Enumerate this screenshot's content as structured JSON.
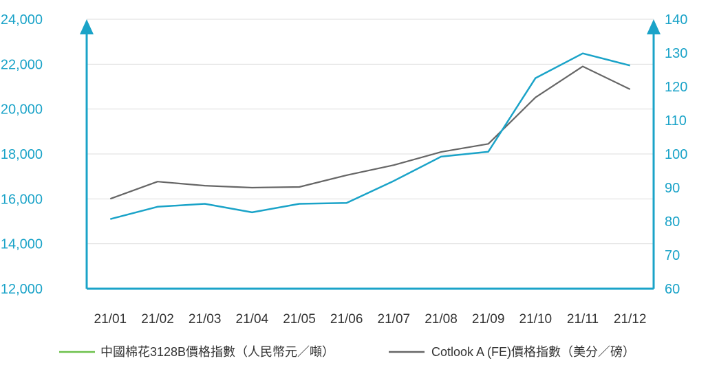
{
  "chart_data": {
    "type": "line",
    "categories": [
      "21/01",
      "21/02",
      "21/03",
      "21/04",
      "21/05",
      "21/06",
      "21/07",
      "21/08",
      "21/09",
      "21/10",
      "21/11",
      "21/12"
    ],
    "series": [
      {
        "name": "中國棉花3128B價格指數（人民幣元／噸）",
        "axis": "left",
        "color": "#1aa3c8",
        "legend_color": "#6cc04a",
        "values": [
          15100,
          15650,
          15780,
          15400,
          15780,
          15820,
          16800,
          17880,
          18100,
          21380,
          22480,
          21940
        ]
      },
      {
        "name": "Cotlook A (FE)價格指數（美分／磅）",
        "axis": "right",
        "color": "#666666",
        "legend_color": "#666666",
        "values": [
          86.7,
          91.8,
          90.6,
          90.0,
          90.2,
          93.7,
          96.7,
          100.6,
          103.0,
          116.8,
          126.0,
          119.2
        ]
      }
    ],
    "y_left": {
      "ylim": [
        12000,
        24000
      ],
      "ticks": [
        "12,000",
        "14,000",
        "16,000",
        "18,000",
        "20,000",
        "22,000",
        "24,000"
      ]
    },
    "y_right": {
      "ylim": [
        60,
        140
      ],
      "ticks": [
        "60",
        "70",
        "80",
        "90",
        "100",
        "110",
        "120",
        "130",
        "140"
      ]
    },
    "grid": true,
    "legend_position": "bottom"
  }
}
